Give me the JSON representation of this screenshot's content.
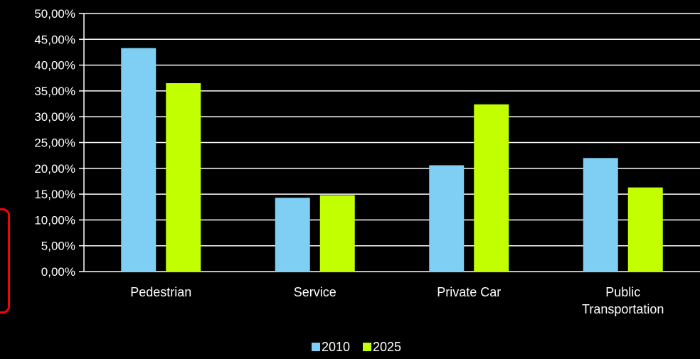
{
  "chart_data": {
    "type": "bar",
    "categories": [
      [
        "Pedestrian"
      ],
      [
        "Service"
      ],
      [
        "Private Car"
      ],
      [
        "Public",
        "Transportation"
      ]
    ],
    "series": [
      {
        "name": "2010",
        "values": [
          43.3,
          14.3,
          20.6,
          22.0
        ],
        "color": "#7fcff5"
      },
      {
        "name": "2025",
        "values": [
          36.5,
          14.8,
          32.4,
          16.3
        ],
        "color": "#c2ff00"
      }
    ],
    "ylim": [
      0,
      50
    ],
    "yticks": [
      "0,00%",
      "5,00%",
      "10,00%",
      "15,00%",
      "20,00%",
      "25,00%",
      "30,00%",
      "35,00%",
      "40,00%",
      "45,00%",
      "50,00%"
    ],
    "grid": true,
    "legend": "bottom-center",
    "background": "#000000",
    "foreground": "#ffffff",
    "accent": "#ff0000"
  }
}
